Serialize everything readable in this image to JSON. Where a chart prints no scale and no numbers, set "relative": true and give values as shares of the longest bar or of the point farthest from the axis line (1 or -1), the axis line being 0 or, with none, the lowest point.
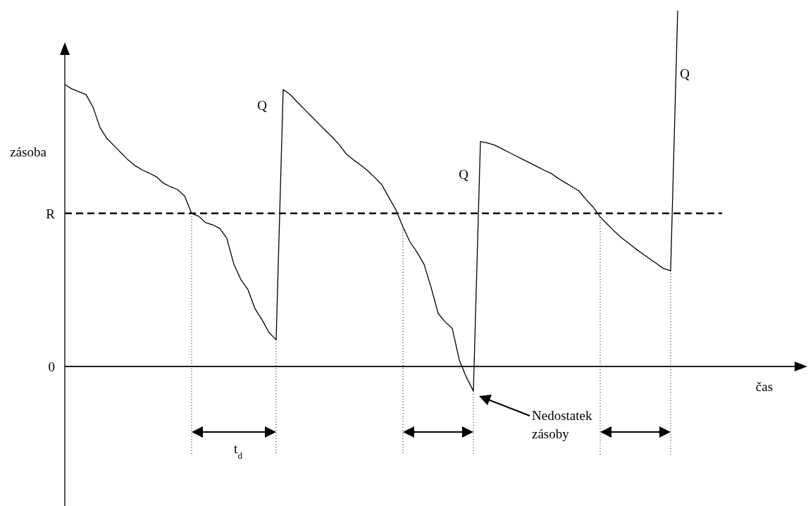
{
  "chart_data": {
    "type": "line",
    "relative": true,
    "xlabel": "čas",
    "ylabel": "zásoba",
    "categories": [
      null,
      null,
      null,
      null,
      null,
      null,
      null,
      null,
      null,
      null,
      null,
      null,
      null,
      null,
      null,
      null,
      null,
      null,
      null,
      null,
      null,
      null,
      null,
      null,
      null,
      null,
      null,
      null,
      null,
      null,
      null,
      null,
      null,
      null,
      null,
      null,
      null,
      null,
      null,
      null,
      null,
      null,
      null,
      null,
      null,
      null,
      null,
      null,
      null,
      null,
      null,
      null,
      null,
      null,
      null,
      null,
      null,
      null,
      null,
      null,
      null,
      null,
      null,
      null,
      null,
      null,
      null,
      null,
      null,
      null,
      null,
      null,
      null,
      null,
      null,
      null,
      null,
      null,
      null,
      null,
      null,
      null,
      null,
      null,
      null,
      null,
      null,
      null,
      null,
      null,
      null,
      null,
      null,
      null,
      null,
      null,
      null,
      null,
      null,
      null,
      null,
      null,
      null,
      null,
      null
    ],
    "series": [
      {
        "color": "#000000",
        "values": [
          0.792,
          0.78,
          0.772,
          0.764,
          0.729,
          0.671,
          0.64,
          0.62,
          0.6,
          0.58,
          0.564,
          0.552,
          0.543,
          0.533,
          0.515,
          0.505,
          0.497,
          0.479,
          0.43,
          0.422,
          0.404,
          0.398,
          0.388,
          0.36,
          0.287,
          0.244,
          0.216,
          0.162,
          0.131,
          0.095,
          0.075,
          0.778,
          0.764,
          0.743,
          0.723,
          0.703,
          0.683,
          0.663,
          0.644,
          0.622,
          0.596,
          0.58,
          0.566,
          0.55,
          0.531,
          0.511,
          0.475,
          0.44,
          0.392,
          0.35,
          0.321,
          0.287,
          0.222,
          0.149,
          0.125,
          0.107,
          0.018,
          -0.03,
          -0.069,
          0.632,
          0.628,
          0.622,
          0.612,
          0.602,
          0.592,
          0.582,
          0.572,
          0.562,
          0.552,
          0.543,
          0.529,
          0.517,
          0.505,
          0.493,
          0.469,
          0.448,
          0.42,
          0.4,
          0.38,
          0.362,
          0.347,
          0.331,
          0.317,
          0.303,
          0.289,
          0.275,
          0.269,
          1,
          null,
          null,
          null,
          null,
          null,
          null,
          null,
          null,
          null,
          null,
          null,
          null,
          null,
          null,
          null,
          null,
          null
        ]
      }
    ],
    "ref_lines": [
      {
        "axis": "y",
        "value": 0,
        "label": "0",
        "line_style": "solid"
      },
      {
        "axis": "y",
        "value": 0.43,
        "label": "R",
        "line_style": "dashed"
      }
    ],
    "annotations": [
      "Q",
      "Q",
      "Q",
      "t$_{d}$",
      "Nedostatek",
      "zásoby"
    ]
  }
}
